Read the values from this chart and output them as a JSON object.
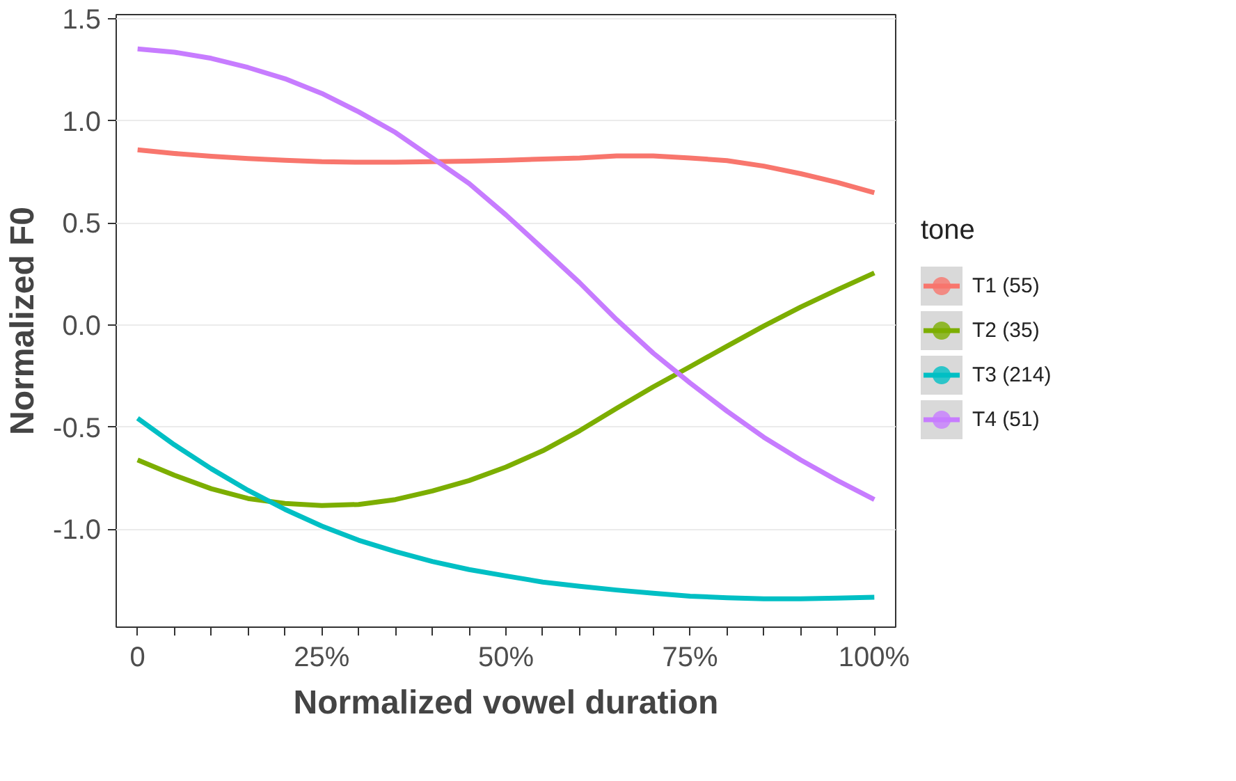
{
  "chart_data": {
    "type": "line",
    "xlabel": "Normalized vowel duration",
    "ylabel": "Normalized F0",
    "legend_title": "tone",
    "legend": "right",
    "grid": "y",
    "line_style": "solid",
    "x": [
      0,
      5,
      10,
      15,
      20,
      25,
      30,
      35,
      40,
      45,
      50,
      55,
      60,
      65,
      70,
      75,
      80,
      85,
      90,
      95,
      100
    ],
    "xlim": [
      -2.9,
      102.9
    ],
    "ylim": [
      -1.48,
      1.52
    ],
    "xticks": [
      {
        "value": 0,
        "label": "0"
      },
      {
        "value": 5,
        "label": null
      },
      {
        "value": 10,
        "label": null
      },
      {
        "value": 15,
        "label": null
      },
      {
        "value": 20,
        "label": null
      },
      {
        "value": 25,
        "label": "25%"
      },
      {
        "value": 30,
        "label": null
      },
      {
        "value": 35,
        "label": null
      },
      {
        "value": 40,
        "label": null
      },
      {
        "value": 45,
        "label": null
      },
      {
        "value": 50,
        "label": "50%"
      },
      {
        "value": 55,
        "label": null
      },
      {
        "value": 60,
        "label": null
      },
      {
        "value": 65,
        "label": null
      },
      {
        "value": 70,
        "label": null
      },
      {
        "value": 75,
        "label": "75%"
      },
      {
        "value": 80,
        "label": null
      },
      {
        "value": 85,
        "label": null
      },
      {
        "value": 90,
        "label": null
      },
      {
        "value": 95,
        "label": null
      },
      {
        "value": 100,
        "label": "100%"
      }
    ],
    "yticks": [
      {
        "value": -1.0,
        "label": "-1.0"
      },
      {
        "value": -0.5,
        "label": "-0.5"
      },
      {
        "value": 0,
        "label": "0.0"
      },
      {
        "value": 0.5,
        "label": "0.5"
      },
      {
        "value": 1.0,
        "label": "1.0"
      },
      {
        "value": 1.5,
        "label": "1.5"
      }
    ],
    "series": [
      {
        "name": "T1 (55)",
        "color": "#f8766d",
        "values": [
          0.858,
          0.84,
          0.826,
          0.815,
          0.807,
          0.8,
          0.797,
          0.797,
          0.8,
          0.802,
          0.807,
          0.813,
          0.818,
          0.828,
          0.828,
          0.818,
          0.805,
          0.778,
          0.741,
          0.698,
          0.648
        ]
      },
      {
        "name": "T2 (35)",
        "color": "#7cae00",
        "values": [
          -0.661,
          -0.736,
          -0.802,
          -0.85,
          -0.874,
          -0.884,
          -0.879,
          -0.855,
          -0.813,
          -0.762,
          -0.696,
          -0.616,
          -0.518,
          -0.409,
          -0.303,
          -0.204,
          -0.104,
          -0.005,
          0.088,
          0.173,
          0.255
        ]
      },
      {
        "name": "T3 (214)",
        "color": "#00bfc4",
        "values": [
          -0.457,
          -0.587,
          -0.704,
          -0.81,
          -0.903,
          -0.985,
          -1.054,
          -1.11,
          -1.158,
          -1.198,
          -1.229,
          -1.259,
          -1.28,
          -1.298,
          -1.314,
          -1.328,
          -1.336,
          -1.341,
          -1.341,
          -1.338,
          -1.333
        ]
      },
      {
        "name": "T4 (51)",
        "color": "#c77cff",
        "values": [
          1.352,
          1.336,
          1.306,
          1.261,
          1.206,
          1.134,
          1.044,
          0.943,
          0.818,
          0.693,
          0.539,
          0.374,
          0.207,
          0.027,
          -0.138,
          -0.284,
          -0.422,
          -0.55,
          -0.661,
          -0.762,
          -0.855
        ]
      }
    ]
  }
}
